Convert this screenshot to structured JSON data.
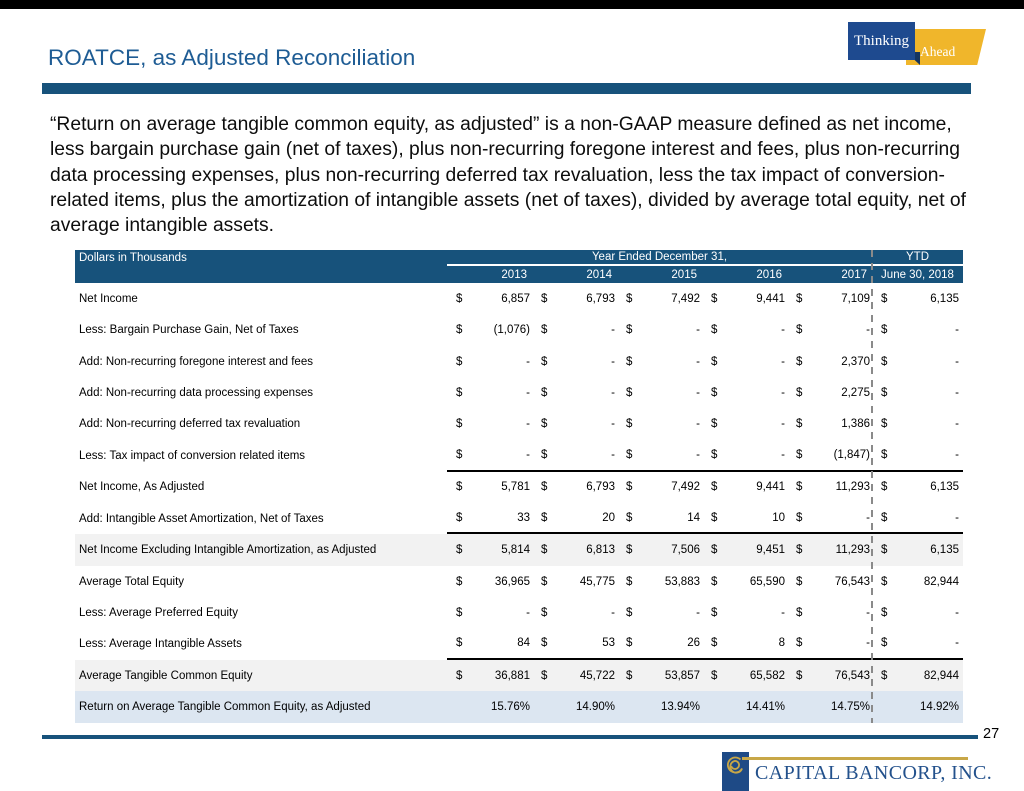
{
  "header": {
    "title": "ROATCE, as Adjusted Reconciliation",
    "brand_badge": {
      "thinking": "Thinking",
      "ahead": "Ahead"
    }
  },
  "intro": "“Return on average tangible common equity, as adjusted” is a non-GAAP measure defined as net income, less bargain purchase gain (net of taxes), plus non-recurring foregone interest and fees, plus non-recurring data processing expenses, plus non-recurring deferred tax revaluation, less the tax impact of conversion-related items, plus the amortization of intangible assets (net of taxes), divided by average total equity, net of average intangible assets.",
  "table": {
    "corner_label": "Dollars in Thousands",
    "group_header": "Year Ended December 31,",
    "ytd_header": "YTD",
    "years": [
      "2013",
      "2014",
      "2015",
      "2016",
      "2017"
    ],
    "ytd_sub_header": "June 30, 2018",
    "rows": [
      {
        "label": "Net Income",
        "dollar": true,
        "values": [
          "6,857",
          "6,793",
          "7,492",
          "9,441",
          "7,109",
          "6,135"
        ]
      },
      {
        "label": "Less: Bargain Purchase Gain, Net of Taxes",
        "dollar": true,
        "values": [
          "(1,076)",
          "-",
          "-",
          "-",
          "-",
          "-"
        ]
      },
      {
        "label": "Add: Non-recurring foregone interest and fees",
        "dollar": true,
        "values": [
          "-",
          "-",
          "-",
          "-",
          "2,370",
          "-"
        ]
      },
      {
        "label": "Add: Non-recurring data processing expenses",
        "dollar": true,
        "values": [
          "-",
          "-",
          "-",
          "-",
          "2,275",
          "-"
        ]
      },
      {
        "label": "Add: Non-recurring deferred tax revaluation",
        "dollar": true,
        "values": [
          "-",
          "-",
          "-",
          "-",
          "1,386",
          "-"
        ]
      },
      {
        "label": "Less: Tax impact of conversion related items",
        "dollar": true,
        "values": [
          "-",
          "-",
          "-",
          "-",
          "(1,847)",
          "-"
        ],
        "underline": true
      },
      {
        "label": "Net Income, As Adjusted",
        "dollar": true,
        "values": [
          "5,781",
          "6,793",
          "7,492",
          "9,441",
          "11,293",
          "6,135"
        ]
      },
      {
        "label": "Add: Intangible Asset Amortization, Net of Taxes",
        "dollar": true,
        "values": [
          "33",
          "20",
          "14",
          "10",
          "-",
          "-"
        ],
        "underline": true
      },
      {
        "label": "Net Income Excluding Intangible Amortization, as Adjusted",
        "dollar": true,
        "values": [
          "5,814",
          "6,813",
          "7,506",
          "9,451",
          "11,293",
          "6,135"
        ],
        "shade": "gray"
      },
      {
        "label": "Average Total Equity",
        "dollar": true,
        "values": [
          "36,965",
          "45,775",
          "53,883",
          "65,590",
          "76,543",
          "82,944"
        ]
      },
      {
        "label": "Less: Average Preferred Equity",
        "dollar": true,
        "values": [
          "-",
          "-",
          "-",
          "-",
          "-",
          "-"
        ]
      },
      {
        "label": "Less: Average Intangible Assets",
        "dollar": true,
        "values": [
          "84",
          "53",
          "26",
          "8",
          "-",
          "-"
        ],
        "underline": true
      },
      {
        "label": "Average Tangible Common Equity",
        "dollar": true,
        "values": [
          "36,881",
          "45,722",
          "53,857",
          "65,582",
          "76,543",
          "82,944"
        ],
        "shade": "gray"
      },
      {
        "label": "Return on Average Tangible Common Equity, as Adjusted",
        "dollar": false,
        "values": [
          "15.76%",
          "14.90%",
          "13.94%",
          "14.41%",
          "14.75%",
          "14.92%"
        ],
        "shade": "blue"
      }
    ]
  },
  "footer": {
    "page_number": "27",
    "company": "CAPITAL BANCORP, INC."
  },
  "colors": {
    "table_header_bg": "#17527B",
    "title_blue": "#1E5C94",
    "navy": "#1E4A86",
    "gold": "#C8A747",
    "badge_gold": "#F0B62B",
    "row_gray": "#F2F2F2",
    "row_blue": "#DCE6F1"
  }
}
